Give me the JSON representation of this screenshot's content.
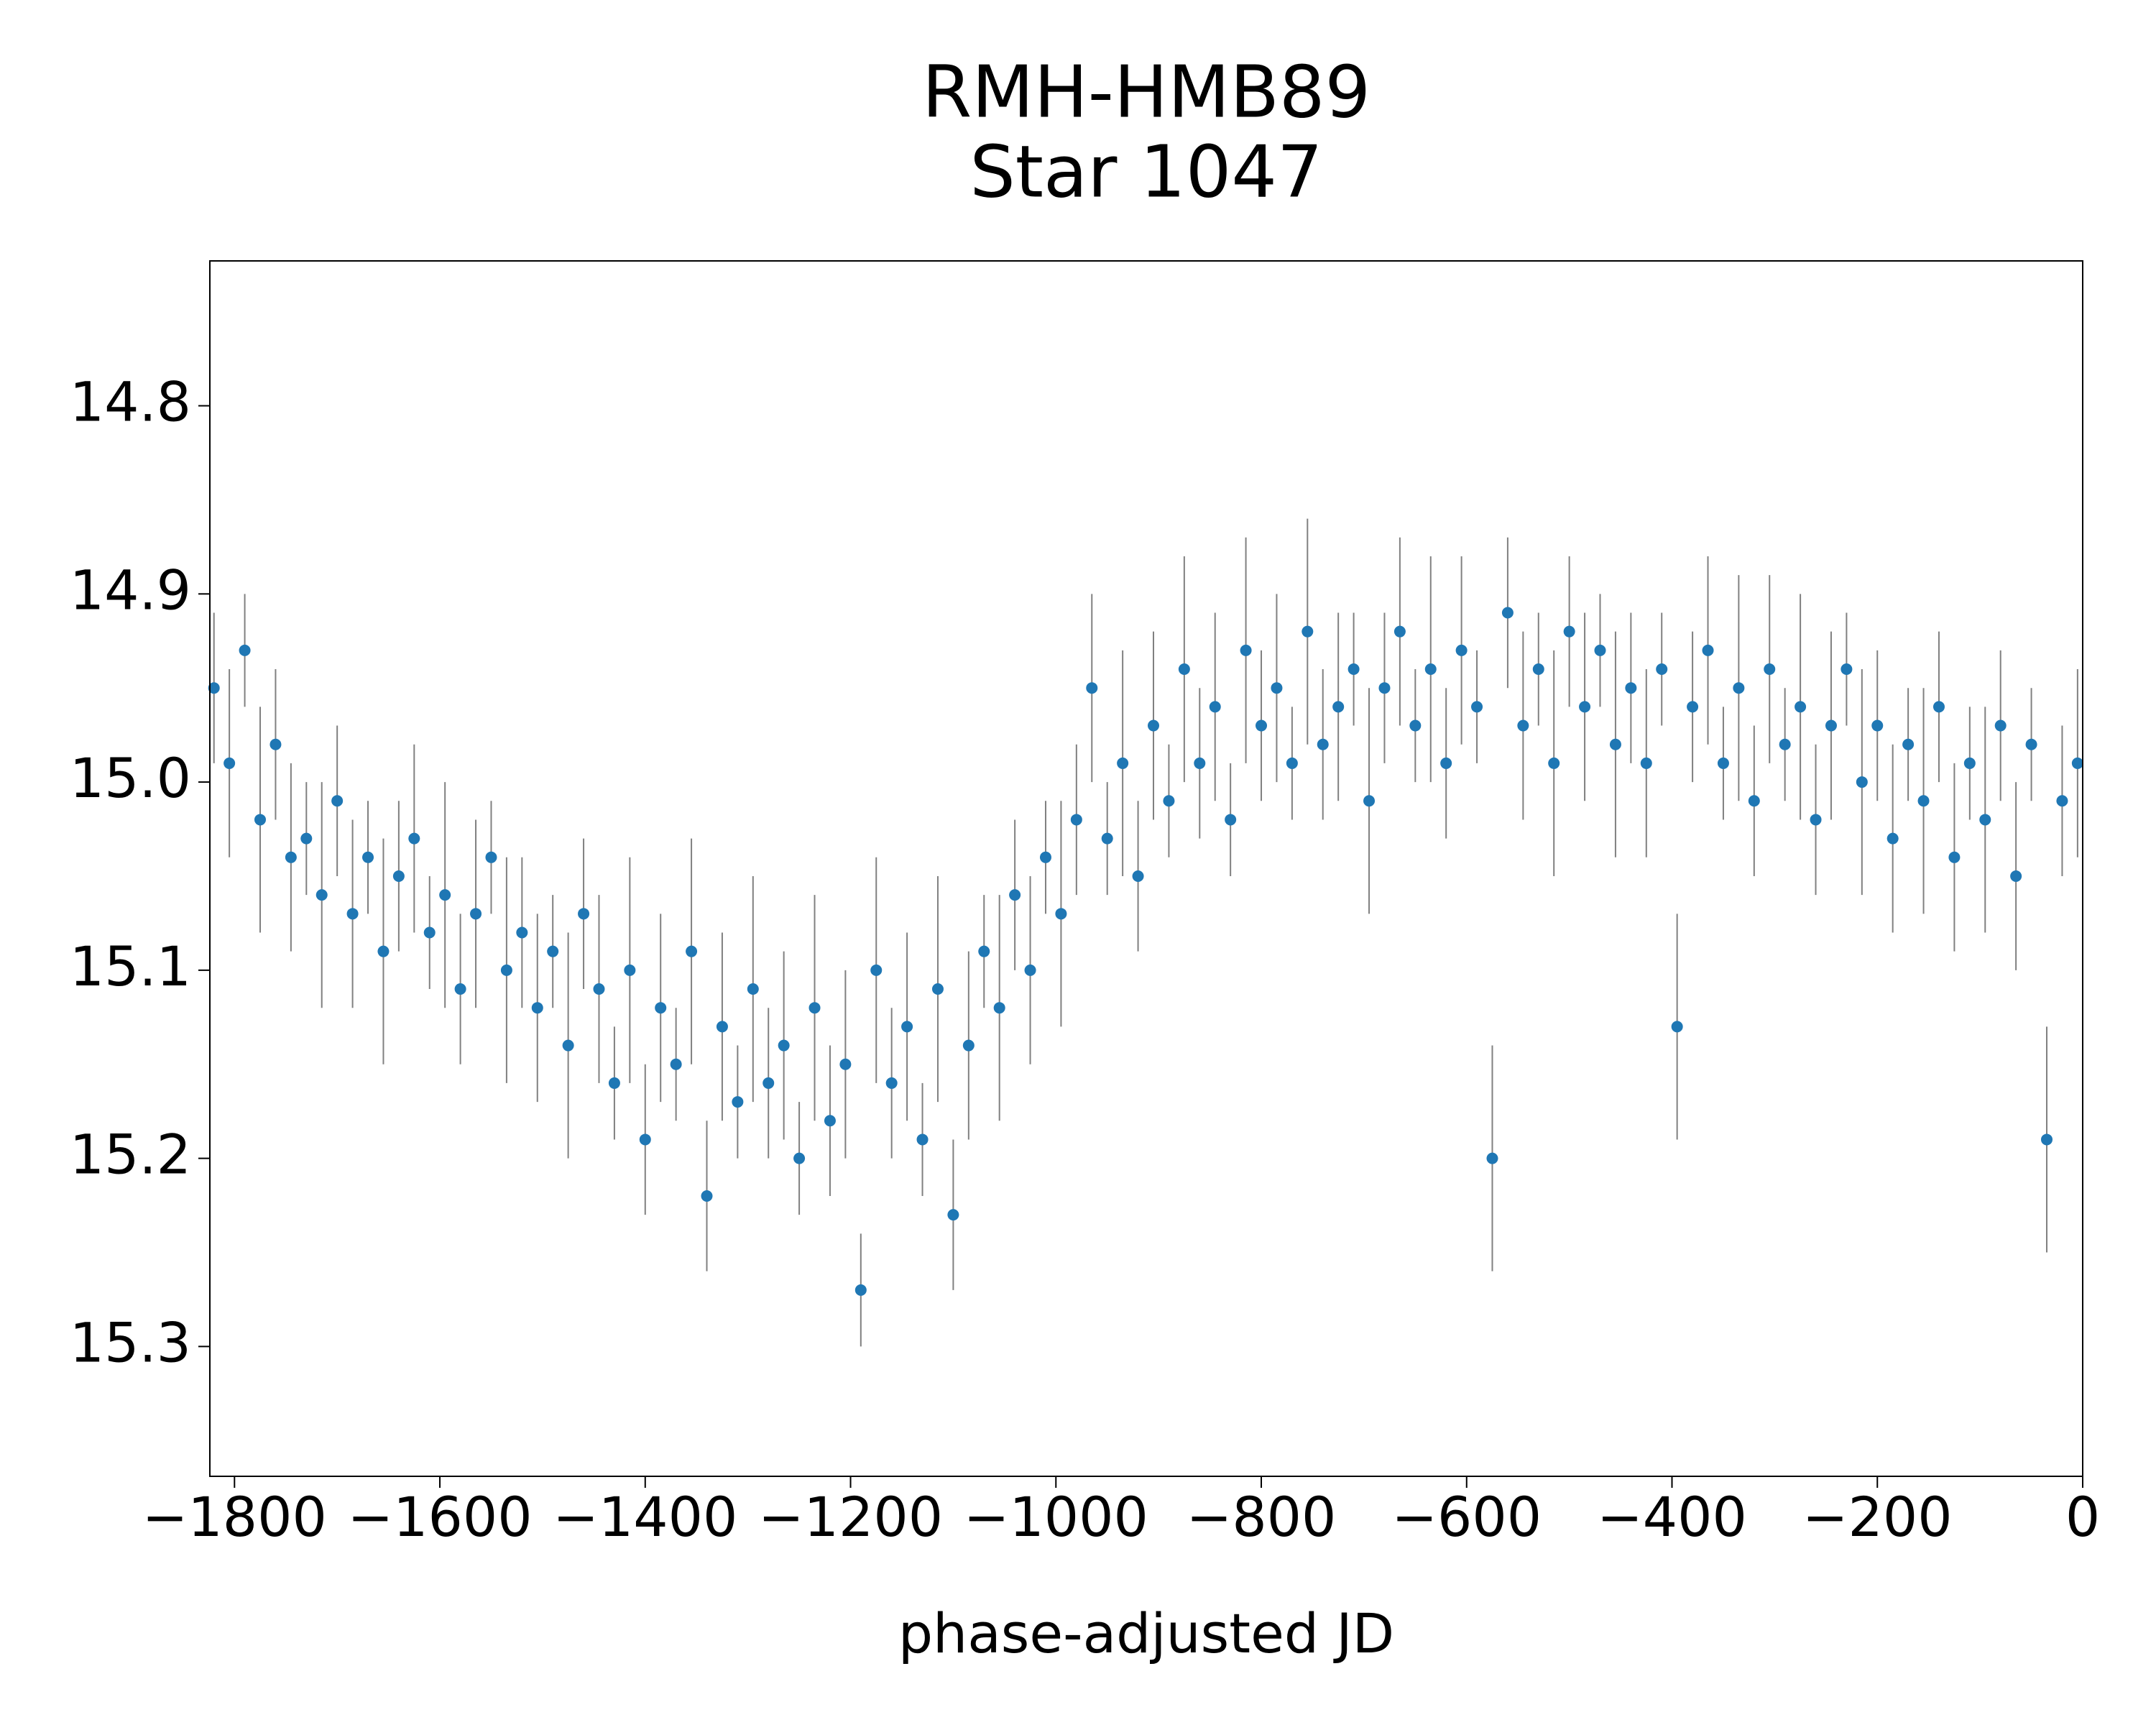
{
  "chart_data": {
    "type": "errorbar",
    "title": "RMH-HMB89",
    "subtitle": "Star 1047",
    "x_label": "phase-adjusted JD",
    "xlim": [
      -1824,
      0
    ],
    "ylim": [
      14.723,
      15.369
    ],
    "invert_y": true,
    "grid": false,
    "xticks": [
      {
        "value": -1800,
        "label": "−1800"
      },
      {
        "value": -1600,
        "label": "−1600"
      },
      {
        "value": -1400,
        "label": "−1400"
      },
      {
        "value": -1200,
        "label": "−1200"
      },
      {
        "value": -1000,
        "label": "−1000"
      },
      {
        "value": -800,
        "label": "−800"
      },
      {
        "value": -600,
        "label": "−600"
      },
      {
        "value": -400,
        "label": "−400"
      },
      {
        "value": -200,
        "label": "−200"
      },
      0
    ],
    "yticks": [
      14.8,
      14.9,
      {
        "value": 15,
        "label": "15.0"
      },
      15.1,
      15.2,
      15.3
    ],
    "series": [
      {
        "color": "#1f77b4",
        "error_color": "#808080",
        "x": [
          -1820,
          -1805,
          -1790,
          -1775,
          -1760,
          -1745,
          -1730,
          -1715,
          -1700,
          -1685,
          -1670,
          -1655,
          -1640,
          -1625,
          -1610,
          -1595,
          -1580,
          -1565,
          -1550,
          -1535,
          -1520,
          -1505,
          -1490,
          -1475,
          -1460,
          -1445,
          -1430,
          -1415,
          -1400,
          -1385,
          -1370,
          -1355,
          -1340,
          -1325,
          -1310,
          -1295,
          -1280,
          -1265,
          -1250,
          -1235,
          -1220,
          -1205,
          -1190,
          -1175,
          -1160,
          -1145,
          -1130,
          -1115,
          -1100,
          -1085,
          -1070,
          -1055,
          -1040,
          -1025,
          -1010,
          -995,
          -980,
          -965,
          -950,
          -935,
          -920,
          -905,
          -890,
          -875,
          -860,
          -845,
          -830,
          -815,
          -800,
          -785,
          -770,
          -755,
          -740,
          -725,
          -710,
          -695,
          -680,
          -665,
          -650,
          -635,
          -620,
          -605,
          -590,
          -575,
          -560,
          -545,
          -530,
          -515,
          -500,
          -485,
          -470,
          -455,
          -440,
          -425,
          -410,
          -395,
          -380,
          -365,
          -350,
          -335,
          -320,
          -305,
          -290,
          -275,
          -260,
          -245,
          -230,
          -215,
          -200,
          -185,
          -170,
          -155,
          -140,
          -125,
          -110,
          -95,
          -80,
          -65,
          -50,
          -35,
          -20,
          -5
        ],
        "values": [
          14.95,
          14.99,
          14.93,
          15.02,
          14.98,
          15.04,
          15.03,
          15.06,
          15.01,
          15.07,
          15.04,
          15.09,
          15.05,
          15.03,
          15.08,
          15.06,
          15.11,
          15.07,
          15.04,
          15.1,
          15.08,
          15.12,
          15.09,
          15.14,
          15.07,
          15.11,
          15.16,
          15.1,
          15.19,
          15.12,
          15.15,
          15.09,
          15.22,
          15.13,
          15.17,
          15.11,
          15.16,
          15.14,
          15.2,
          15.12,
          15.18,
          15.15,
          15.27,
          15.1,
          15.16,
          15.13,
          15.19,
          15.11,
          15.23,
          15.14,
          15.09,
          15.12,
          15.06,
          15.1,
          15.04,
          15.07,
          15.02,
          14.95,
          15.03,
          14.99,
          15.05,
          14.97,
          15.01,
          14.94,
          14.99,
          14.96,
          15.02,
          14.93,
          14.97,
          14.95,
          14.99,
          14.92,
          14.98,
          14.96,
          14.94,
          15.01,
          14.95,
          14.92,
          14.97,
          14.94,
          14.99,
          14.93,
          14.96,
          15.2,
          14.91,
          14.97,
          14.94,
          14.99,
          14.92,
          14.96,
          14.93,
          14.98,
          14.95,
          14.99,
          14.94,
          15.13,
          14.96,
          14.93,
          14.99,
          14.95,
          15.01,
          14.94,
          14.98,
          14.96,
          15.02,
          14.97,
          14.94,
          15.0,
          14.97,
          15.03,
          14.98,
          15.01,
          14.96,
          15.04,
          14.99,
          15.02,
          14.97,
          15.05,
          14.98,
          15.19,
          15.01,
          14.99
        ],
        "errors": [
          0.04,
          0.05,
          0.03,
          0.06,
          0.04,
          0.05,
          0.03,
          0.06,
          0.04,
          0.05,
          0.03,
          0.06,
          0.04,
          0.05,
          0.03,
          0.06,
          0.04,
          0.05,
          0.03,
          0.06,
          0.04,
          0.05,
          0.03,
          0.06,
          0.04,
          0.05,
          0.03,
          0.06,
          0.04,
          0.05,
          0.03,
          0.06,
          0.04,
          0.05,
          0.03,
          0.06,
          0.04,
          0.05,
          0.03,
          0.06,
          0.04,
          0.05,
          0.03,
          0.06,
          0.04,
          0.05,
          0.03,
          0.06,
          0.04,
          0.05,
          0.03,
          0.06,
          0.04,
          0.05,
          0.03,
          0.06,
          0.04,
          0.05,
          0.03,
          0.06,
          0.04,
          0.05,
          0.03,
          0.06,
          0.04,
          0.05,
          0.03,
          0.06,
          0.04,
          0.05,
          0.03,
          0.06,
          0.04,
          0.05,
          0.03,
          0.06,
          0.04,
          0.05,
          0.03,
          0.06,
          0.04,
          0.05,
          0.03,
          0.06,
          0.04,
          0.05,
          0.03,
          0.06,
          0.04,
          0.05,
          0.03,
          0.06,
          0.04,
          0.05,
          0.03,
          0.06,
          0.04,
          0.05,
          0.03,
          0.06,
          0.04,
          0.05,
          0.03,
          0.06,
          0.04,
          0.05,
          0.03,
          0.06,
          0.04,
          0.05,
          0.03,
          0.06,
          0.04,
          0.05,
          0.03,
          0.06,
          0.04,
          0.05,
          0.03,
          0.06,
          0.04,
          0.05
        ]
      }
    ]
  }
}
